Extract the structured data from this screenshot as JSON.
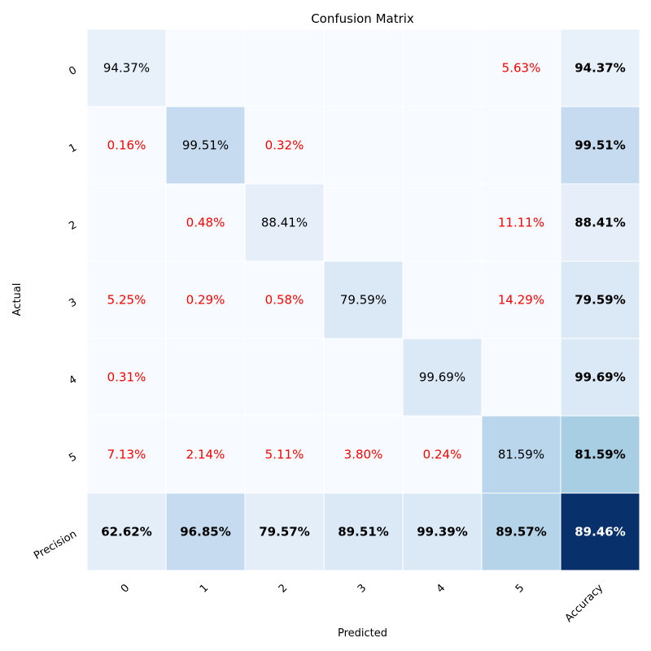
{
  "chart_data": {
    "type": "heatmap",
    "title": "Confusion Matrix",
    "xlabel": "Predicted",
    "ylabel": "Actual",
    "x_tick_labels": [
      "0",
      "1",
      "2",
      "3",
      "4",
      "5",
      "Accuracy"
    ],
    "y_tick_labels": [
      "0",
      "1",
      "2",
      "3",
      "4",
      "5",
      "Precision"
    ],
    "colormap": "Blues",
    "colorbar": false,
    "cells": [
      [
        "94.37%",
        "",
        "",
        "",
        "",
        "5.63%",
        "94.37%"
      ],
      [
        "0.16%",
        "99.51%",
        "0.32%",
        "",
        "",
        "",
        "99.51%"
      ],
      [
        "",
        "0.48%",
        "88.41%",
        "",
        "",
        "11.11%",
        "88.41%"
      ],
      [
        "5.25%",
        "0.29%",
        "0.58%",
        "79.59%",
        "",
        "14.29%",
        "79.59%"
      ],
      [
        "0.31%",
        "",
        "",
        "",
        "99.69%",
        "",
        "99.69%"
      ],
      [
        "7.13%",
        "2.14%",
        "5.11%",
        "3.80%",
        "0.24%",
        "81.59%",
        "81.59%"
      ],
      [
        "62.62%",
        "96.85%",
        "79.57%",
        "89.51%",
        "99.39%",
        "89.57%",
        "89.46%"
      ]
    ],
    "cell_colors": [
      [
        "#e8f1fa",
        "#f7fbff",
        "#f7fbff",
        "#f7fbff",
        "#f7fbff",
        "#f7fbff",
        "#e8f1fa"
      ],
      [
        "#f7fbff",
        "#c6dbef",
        "#f7fbff",
        "#f7fbff",
        "#f7fbff",
        "#f7fbff",
        "#c6dbef"
      ],
      [
        "#f7fbff",
        "#f7fbff",
        "#e6eff9",
        "#f7fbff",
        "#f7fbff",
        "#f7fbff",
        "#e6eff9"
      ],
      [
        "#f7fbff",
        "#f7fbff",
        "#f7fbff",
        "#dbe9f6",
        "#f7fbff",
        "#f7fbff",
        "#dbe9f6"
      ],
      [
        "#f7fbff",
        "#f7fbff",
        "#f7fbff",
        "#f7fbff",
        "#dbe9f6",
        "#f7fbff",
        "#dbe9f6"
      ],
      [
        "#f7fbff",
        "#f7fbff",
        "#f7fbff",
        "#f7fbff",
        "#f7fbff",
        "#b9d6ec",
        "#a8cee4"
      ],
      [
        "#e3eef8",
        "#c6dbef",
        "#e3eef8",
        "#dbe9f6",
        "#dbe9f6",
        "#b5d4e9",
        "#08306b"
      ]
    ],
    "colors": {
      "diagonal_text": "#000000",
      "off_diagonal_text": "#ff0000",
      "summary_text": "#000000",
      "dark_cell_text": "#ffffff",
      "grid_line": "#ffffff"
    }
  }
}
